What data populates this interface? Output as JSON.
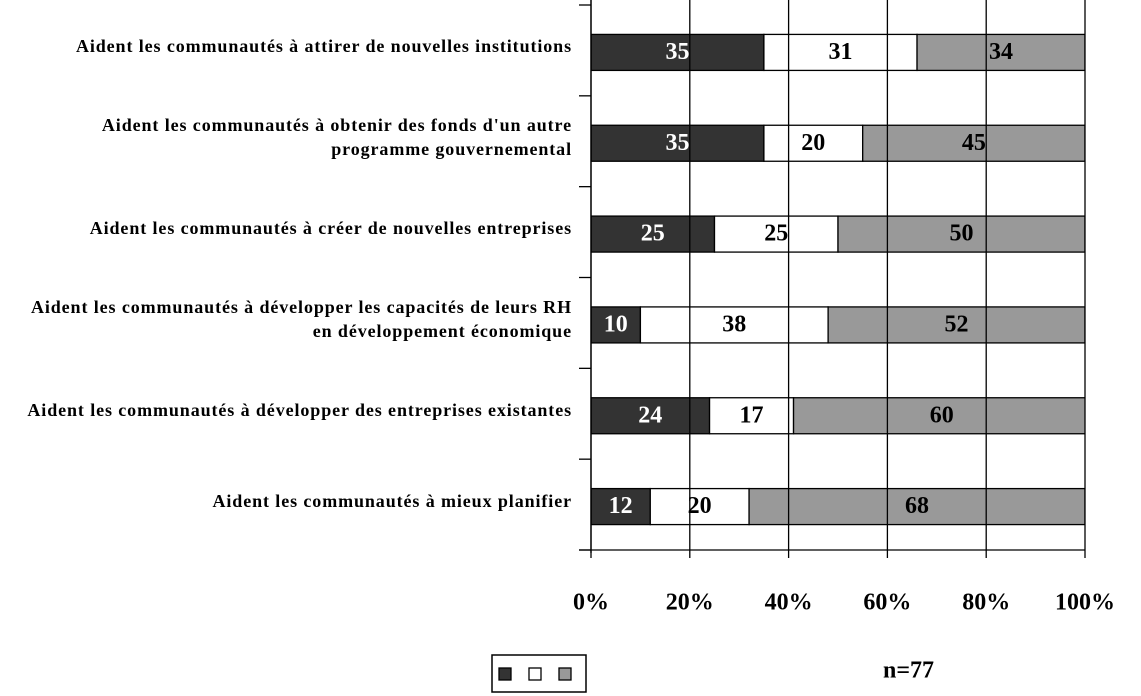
{
  "chart_data": {
    "type": "stacked-bar-horizontal",
    "categories": [
      "Aident les communautés à attirer de nouvelles institutions",
      "Aident les communautés à obtenir des fonds d'un autre programme gouvernemental",
      "Aident les communautés à créer de nouvelles entreprises",
      "Aident les communautés à développer les capacités de leurs RH en développement économique",
      "Aident les communautés à développer des entreprises existantes",
      "Aident les communautés à mieux planifier"
    ],
    "series": [
      {
        "color": "#333333",
        "values": [
          35,
          35,
          25,
          10,
          24,
          12
        ]
      },
      {
        "color": "#ffffff",
        "values": [
          31,
          20,
          25,
          38,
          17,
          20
        ]
      },
      {
        "color": "#999999",
        "values": [
          34,
          45,
          50,
          52,
          60,
          68
        ]
      }
    ],
    "xlim": [
      0,
      100
    ],
    "xticks": [
      {
        "value": 0,
        "label": "0%"
      },
      {
        "value": 20,
        "label": "20%"
      },
      {
        "value": 40,
        "label": "40%"
      },
      {
        "value": 60,
        "label": "60%"
      },
      {
        "value": 80,
        "label": "80%"
      },
      {
        "value": 100,
        "label": "100%"
      }
    ],
    "grid": true,
    "annotation": "n=77"
  }
}
